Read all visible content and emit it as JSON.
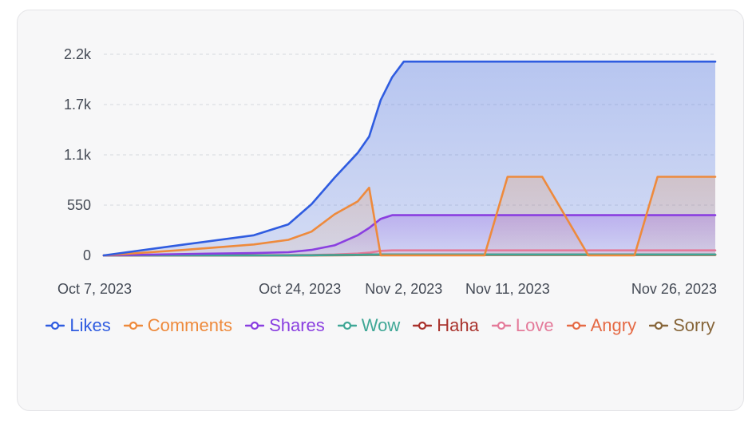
{
  "chart_data": {
    "type": "area",
    "y_ticks": [
      "0",
      "550",
      "1.1k",
      "1.7k",
      "2.2k"
    ],
    "y_tick_values": [
      0,
      550,
      1100,
      1650,
      2200
    ],
    "ylim": [
      0,
      2200
    ],
    "x_ticks": [
      "Oct 7, 2023",
      "Oct 24, 2023",
      "Nov 2, 2023",
      "Nov 11, 2023",
      "Nov 26, 2023"
    ],
    "x": [
      "Oct 7, 2023",
      "Oct 14, 2023",
      "Oct 20, 2023",
      "Oct 23, 2023",
      "Oct 25, 2023",
      "Oct 27, 2023",
      "Oct 29, 2023",
      "Oct 30, 2023",
      "Oct 31, 2023",
      "Nov 1, 2023",
      "Nov 2, 2023",
      "Nov 4, 2023",
      "Nov 6, 2023",
      "Nov 8, 2023",
      "Nov 9, 2023",
      "Nov 11, 2023",
      "Nov 14, 2023",
      "Nov 18, 2023",
      "Nov 21, 2023",
      "Nov 22, 2023",
      "Nov 24, 2023",
      "Nov 26, 2023",
      "Nov 29, 2023"
    ],
    "grid": true,
    "legend_position": "bottom",
    "series": [
      {
        "name": "Likes",
        "color": "#2f5ce0",
        "values": [
          0,
          120,
          220,
          340,
          560,
          850,
          1120,
          1300,
          1700,
          1950,
          2120,
          2120,
          2120,
          2120,
          2120,
          2120,
          2120,
          2120,
          2120,
          2120,
          2120,
          2120,
          2120
        ]
      },
      {
        "name": "Comments",
        "color": "#ee8a3c",
        "values": [
          0,
          60,
          120,
          170,
          260,
          450,
          590,
          740,
          0,
          0,
          0,
          0,
          0,
          0,
          0,
          860,
          860,
          0,
          0,
          0,
          860,
          860,
          860
        ]
      },
      {
        "name": "Shares",
        "color": "#8a3fe0",
        "values": [
          0,
          15,
          25,
          35,
          60,
          110,
          220,
          300,
          400,
          440,
          440,
          440,
          440,
          440,
          440,
          440,
          440,
          440,
          440,
          440,
          440,
          440,
          440
        ]
      },
      {
        "name": "Wow",
        "color": "#3fa796",
        "values": [
          0,
          0,
          0,
          0,
          2,
          4,
          6,
          8,
          10,
          10,
          10,
          10,
          10,
          10,
          10,
          10,
          10,
          10,
          10,
          10,
          10,
          10,
          10
        ]
      },
      {
        "name": "Haha",
        "color": "#a9322c",
        "values": [
          0,
          0,
          0,
          0,
          2,
          4,
          6,
          8,
          10,
          10,
          10,
          10,
          10,
          10,
          10,
          10,
          10,
          10,
          10,
          10,
          10,
          10,
          10
        ]
      },
      {
        "name": "Love",
        "color": "#e47a9a",
        "values": [
          0,
          1,
          2,
          3,
          5,
          10,
          20,
          30,
          50,
          55,
          55,
          55,
          55,
          55,
          55,
          55,
          55,
          55,
          55,
          55,
          55,
          55,
          55
        ]
      },
      {
        "name": "Angry",
        "color": "#e56a45",
        "values": [
          0,
          0,
          0,
          0,
          1,
          2,
          3,
          4,
          5,
          5,
          5,
          5,
          5,
          5,
          5,
          5,
          5,
          5,
          5,
          5,
          5,
          5,
          5
        ]
      },
      {
        "name": "Sorry",
        "color": "#87663a",
        "values": [
          0,
          0,
          0,
          0,
          1,
          2,
          3,
          4,
          5,
          5,
          5,
          5,
          5,
          5,
          5,
          5,
          5,
          5,
          5,
          5,
          5,
          5,
          5
        ]
      }
    ]
  }
}
